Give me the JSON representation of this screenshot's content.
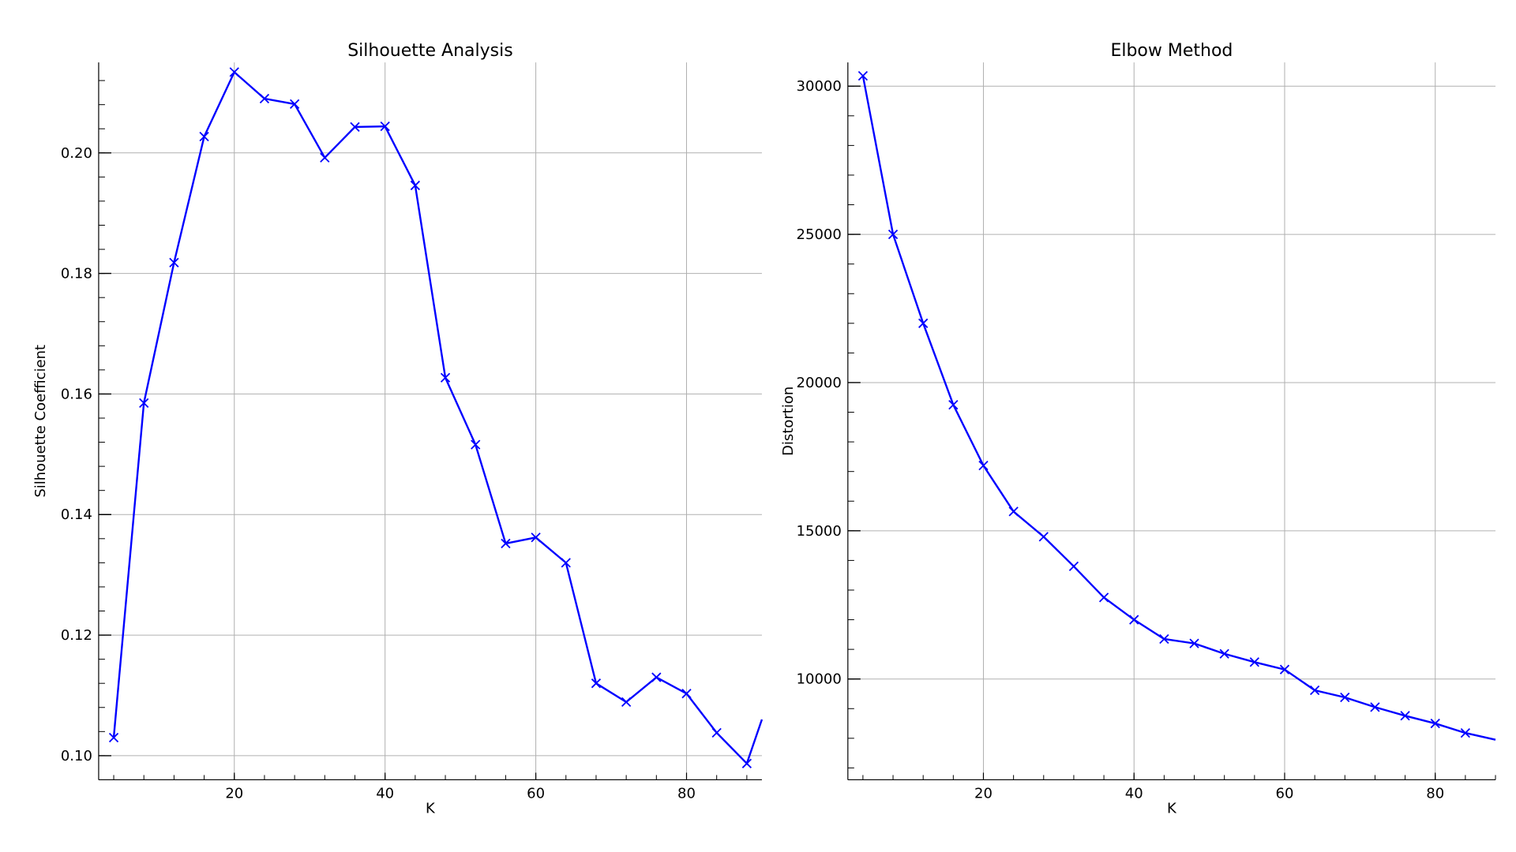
{
  "chart_data": [
    {
      "type": "line",
      "title": "Silhouette Analysis",
      "xlabel": "K",
      "ylabel": "Silhouette Coefficient",
      "xlim": [
        2,
        90
      ],
      "ylim": [
        0.096,
        0.215
      ],
      "xticks": [
        20,
        40,
        60,
        80
      ],
      "xtick_labels": [
        "20",
        "40",
        "60",
        "80"
      ],
      "yticks": [
        0.1,
        0.12,
        0.14,
        0.16,
        0.18,
        0.2
      ],
      "ytick_labels": [
        "0.10",
        "0.12",
        "0.14",
        "0.16",
        "0.18",
        "0.20"
      ],
      "grid": true,
      "marker": "x",
      "color": "#0000ff",
      "x": [
        4,
        8,
        12,
        16,
        20,
        24,
        28,
        32,
        36,
        40,
        44,
        48,
        52,
        56,
        60,
        64,
        68,
        72,
        76,
        80,
        84,
        88,
        90
      ],
      "y": [
        0.103,
        0.1585,
        0.1818,
        0.2027,
        0.2134,
        0.209,
        0.2081,
        0.1992,
        0.2043,
        0.2044,
        0.1946,
        0.1627,
        0.1516,
        0.1352,
        0.1362,
        0.132,
        0.112,
        0.1089,
        0.113,
        0.1103,
        0.1038,
        0.0987,
        0.106
      ]
    },
    {
      "type": "line",
      "title": "Elbow Method",
      "xlabel": "K",
      "ylabel": "Distortion",
      "xlim": [
        2,
        88
      ],
      "ylim": [
        6600,
        30800
      ],
      "xticks": [
        20,
        40,
        60,
        80
      ],
      "xtick_labels": [
        "20",
        "40",
        "60",
        "80"
      ],
      "yticks": [
        10000,
        15000,
        20000,
        25000,
        30000
      ],
      "ytick_labels": [
        "10000",
        "15000",
        "20000",
        "25000",
        "30000"
      ],
      "grid": true,
      "marker": "x",
      "color": "#0000ff",
      "x": [
        4,
        8,
        12,
        16,
        20,
        24,
        28,
        32,
        36,
        40,
        44,
        48,
        52,
        56,
        60,
        64,
        68,
        72,
        76,
        80,
        84,
        88
      ],
      "y": [
        30350,
        25000,
        22000,
        19250,
        17200,
        15650,
        14800,
        13800,
        12750,
        12000,
        11350,
        11200,
        10850,
        10570,
        10320,
        9620,
        9380,
        9050,
        8760,
        8500,
        8180,
        7950
      ]
    }
  ]
}
